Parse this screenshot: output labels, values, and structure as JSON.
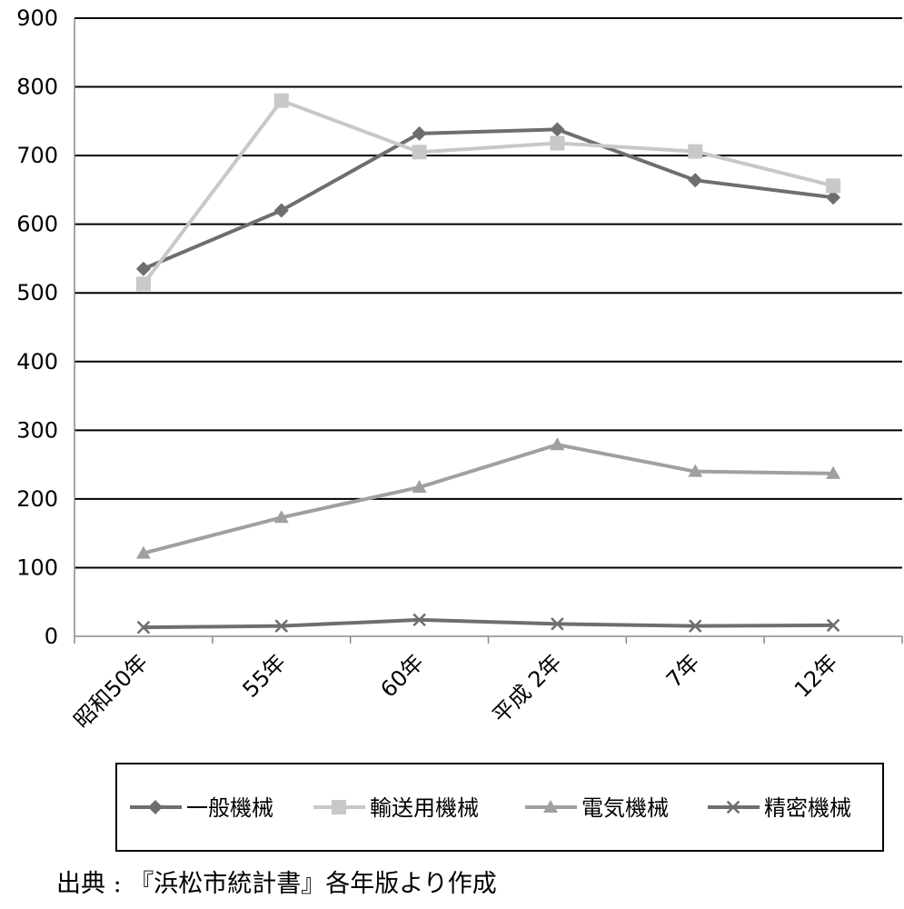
{
  "chart_data": {
    "type": "line",
    "categories": [
      "昭和50年",
      "55年",
      "60年",
      "平成 2年",
      "7年",
      "12年"
    ],
    "ylim": [
      0,
      900
    ],
    "yticks": [
      0,
      100,
      200,
      300,
      400,
      500,
      600,
      700,
      800,
      900
    ],
    "grid": true,
    "legend_position": "bottom",
    "series": [
      {
        "name": "一般機械",
        "values": [
          535,
          620,
          732,
          738,
          664,
          639
        ],
        "color": "#6e6e6e",
        "marker": "diamond"
      },
      {
        "name": "輸送用機械",
        "values": [
          513,
          780,
          705,
          718,
          706,
          656
        ],
        "color": "#c8c8c8",
        "marker": "square"
      },
      {
        "name": "電気機械",
        "values": [
          121,
          173,
          217,
          279,
          240,
          237
        ],
        "color": "#a0a0a0",
        "marker": "triangle"
      },
      {
        "name": "精密機械",
        "values": [
          13,
          15,
          24,
          18,
          15,
          16
        ],
        "color": "#6e6e6e",
        "marker": "x"
      }
    ]
  },
  "source_text": "出典 : 『浜松市統計書』各年版より作成"
}
